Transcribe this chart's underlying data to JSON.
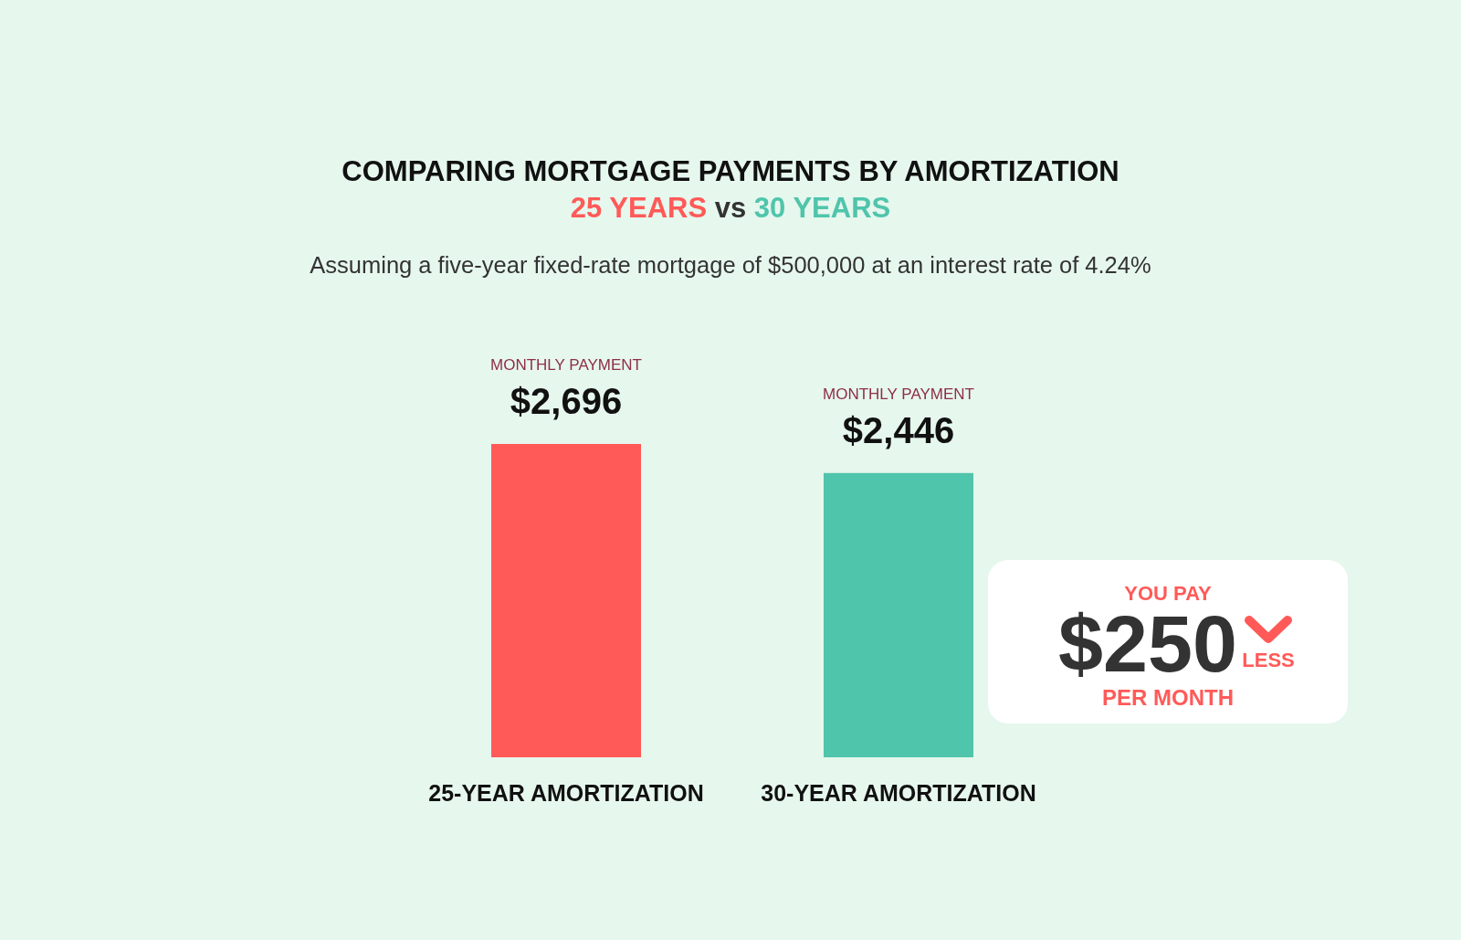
{
  "chart_data": {
    "type": "bar",
    "title": "COMPARING MORTGAGE PAYMENTS BY AMORTIZATION",
    "subtitle": "25 YEARS vs 30 YEARS",
    "categories": [
      "25-YEAR AMORTIZATION",
      "30-YEAR AMORTIZATION"
    ],
    "values": [
      2696,
      2446
    ],
    "colors": [
      "#ff5a58",
      "#4fc5ab"
    ],
    "value_labels": [
      "$2,696",
      "$2,446"
    ],
    "annotations": [
      "Assuming a five-year fixed-rate mortgage of $500,000 at an interest rate of 4.24%",
      "MONTHLY PAYMENT",
      "MONTHLY PAYMENT",
      "YOU PAY",
      "$250",
      "LESS",
      "PER MONTH"
    ]
  }
}
